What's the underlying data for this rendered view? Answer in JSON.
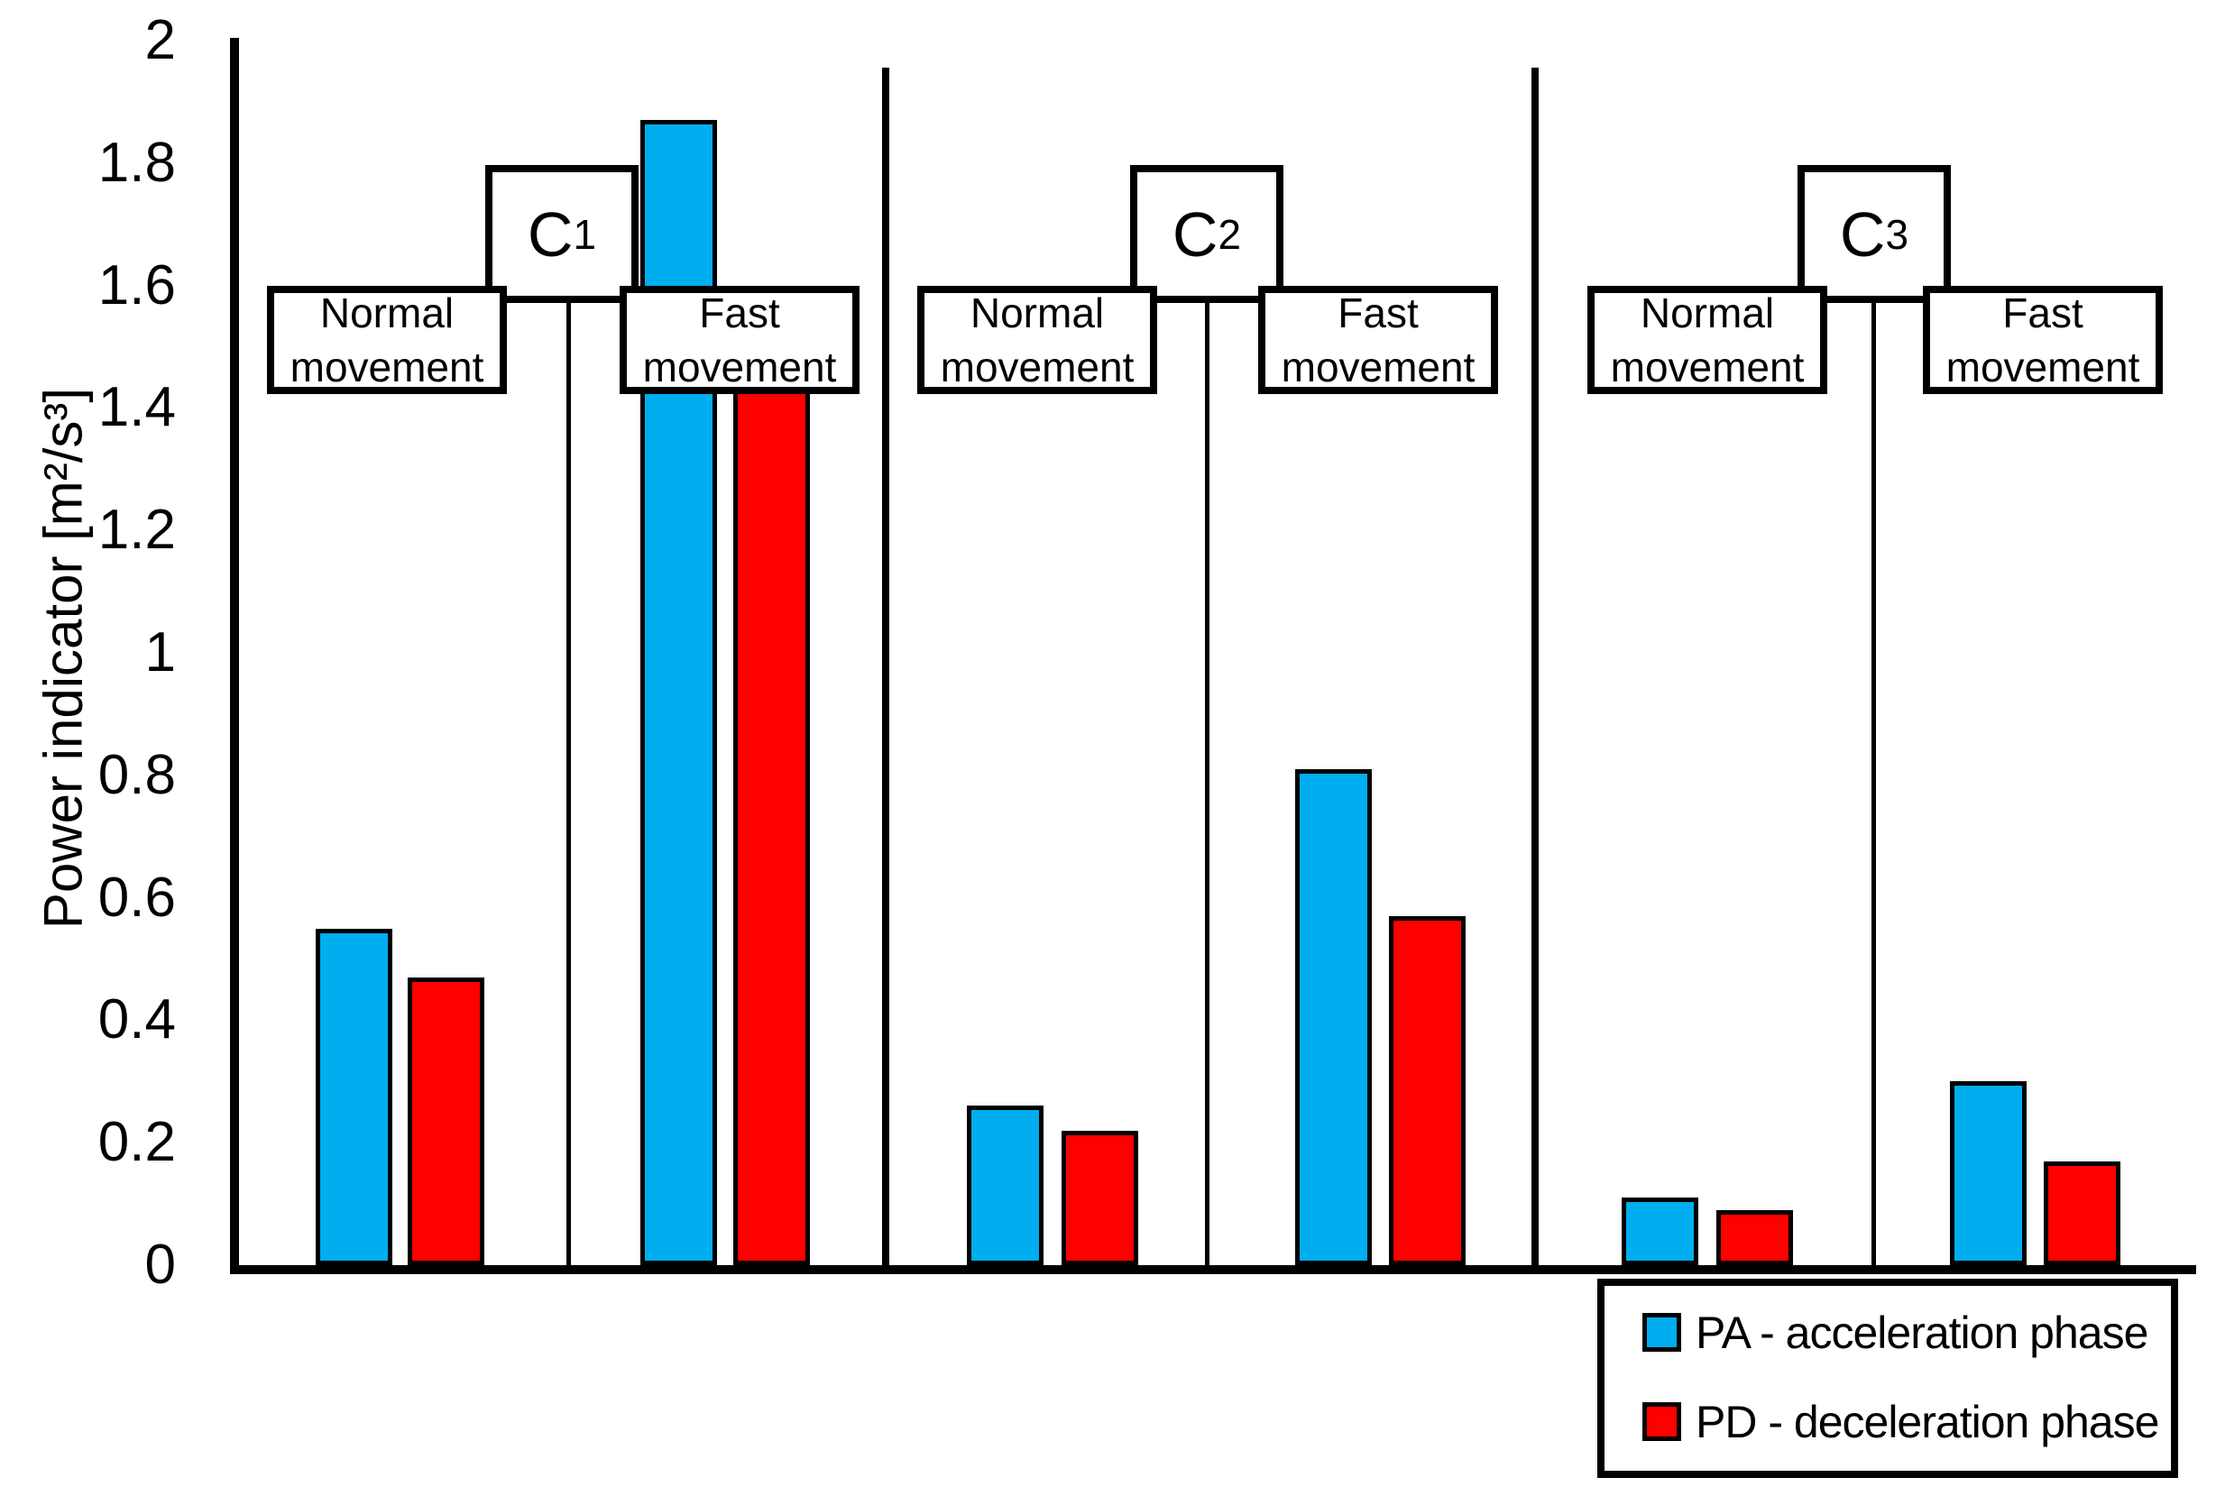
{
  "chart_data": {
    "type": "bar",
    "title": "",
    "ylabel": "Power indicator [m²/s³]",
    "ylim": [
      0,
      2
    ],
    "ytick_step": 0.2,
    "ytick_values": [
      2,
      1.8,
      1.6,
      1.4,
      1.2,
      1,
      0.8,
      0.6,
      0.4,
      0.2,
      0
    ],
    "ytick_labels": [
      "2",
      "1.8",
      "1.6",
      "1.4",
      "1.2",
      "1",
      "0.8",
      "0.6",
      "0.4",
      "0.2",
      "0"
    ],
    "grid": false,
    "legend_position": "bottom-right",
    "series": [
      {
        "id": "PA",
        "name": "PA - acceleration phase",
        "color": "#00AEEF"
      },
      {
        "id": "PD",
        "name": "PD - deceleration phase",
        "color": "#FF0000"
      }
    ],
    "groups": [
      {
        "label_base": "C",
        "label_sub": "1",
        "conditions": [
          {
            "label_line1": "Normal",
            "label_line2": "movement",
            "PA": 0.55,
            "PD": 0.47
          },
          {
            "label_line1": "Fast",
            "label_line2": "movement",
            "PA": 1.87,
            "PD": 1.43
          }
        ]
      },
      {
        "label_base": "C",
        "label_sub": "2",
        "conditions": [
          {
            "label_line1": "Normal",
            "label_line2": "movement",
            "PA": 0.26,
            "PD": 0.22
          },
          {
            "label_line1": "Fast",
            "label_line2": "movement",
            "PA": 0.81,
            "PD": 0.57
          }
        ]
      },
      {
        "label_base": "C",
        "label_sub": "3",
        "conditions": [
          {
            "label_line1": "Normal",
            "label_line2": "movement",
            "PA": 0.11,
            "PD": 0.09
          },
          {
            "label_line1": "Fast",
            "label_line2": "movement",
            "PA": 0.3,
            "PD": 0.17
          }
        ]
      }
    ]
  }
}
